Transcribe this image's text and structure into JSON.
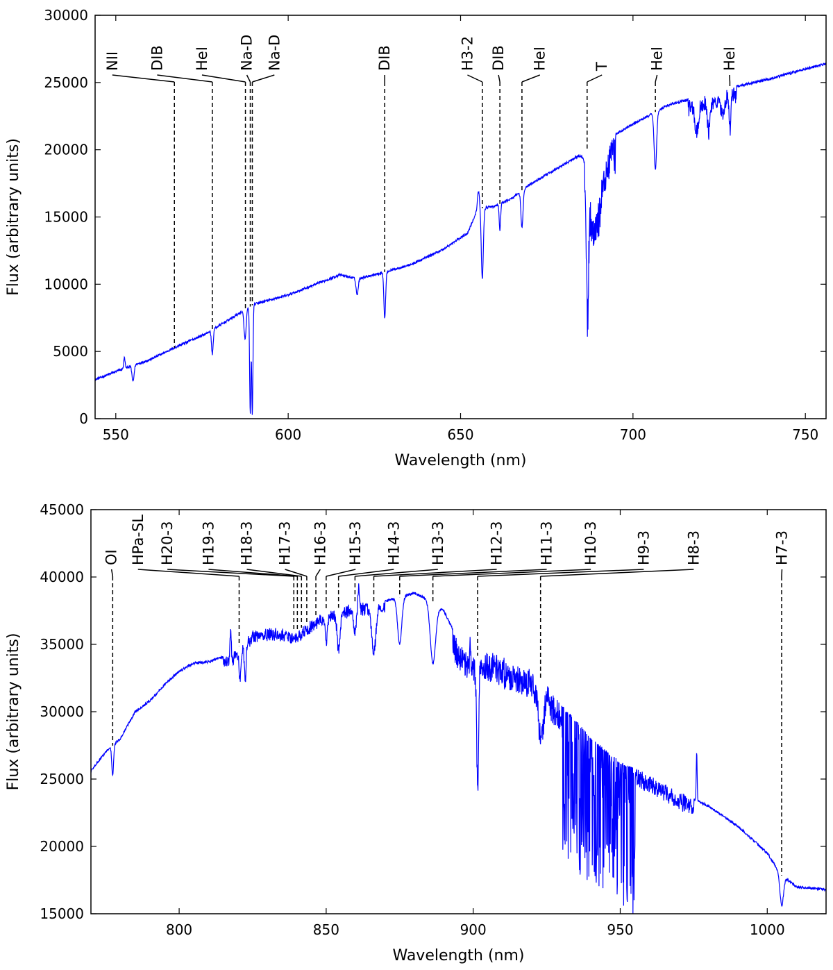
{
  "chart_data": [
    {
      "type": "line",
      "title": "",
      "xlabel": "Wavelength (nm)",
      "ylabel": "Flux (arbitrary units)",
      "xlim": [
        544,
        756
      ],
      "ylim": [
        0,
        30000
      ],
      "xticks": [
        550,
        600,
        650,
        700,
        750
      ],
      "yticks": [
        0,
        5000,
        10000,
        15000,
        20000,
        25000,
        30000
      ],
      "grid": false,
      "legend": "none",
      "color": "#0000ff",
      "continuum": [
        [
          544,
          2900
        ],
        [
          552,
          3700
        ],
        [
          560,
          4400
        ],
        [
          568,
          5400
        ],
        [
          576,
          6300
        ],
        [
          585,
          7700
        ],
        [
          590,
          8500
        ],
        [
          600,
          9200
        ],
        [
          610,
          10200
        ],
        [
          615,
          10700
        ],
        [
          620,
          10400
        ],
        [
          628,
          10900
        ],
        [
          636,
          11500
        ],
        [
          645,
          12600
        ],
        [
          652,
          13800
        ],
        [
          655,
          15600
        ],
        [
          660,
          15800
        ],
        [
          665,
          16400
        ],
        [
          670,
          17400
        ],
        [
          680,
          18900
        ],
        [
          688,
          20200
        ],
        [
          692,
          20700
        ],
        [
          700,
          21900
        ],
        [
          710,
          23300
        ],
        [
          720,
          24000
        ],
        [
          730,
          24700
        ],
        [
          740,
          25300
        ],
        [
          750,
          26000
        ],
        [
          756,
          26400
        ]
      ],
      "absorption_features": [
        {
          "x": 555,
          "depth": 1200,
          "width": 0.3
        },
        {
          "x": 578,
          "depth": 1800,
          "width": 0.25
        },
        {
          "x": 587.5,
          "depth": 2200,
          "width": 0.3
        },
        {
          "x": 589.0,
          "depth": 8000,
          "width": 0.18
        },
        {
          "x": 589.6,
          "depth": 8100,
          "width": 0.18
        },
        {
          "x": 620,
          "depth": 1200,
          "width": 0.3
        },
        {
          "x": 628,
          "depth": 3400,
          "width": 0.25
        },
        {
          "x": 656.3,
          "depth": 5200,
          "width": 0.3
        },
        {
          "x": 661.4,
          "depth": 2000,
          "width": 0.2
        },
        {
          "x": 667.8,
          "depth": 2800,
          "width": 0.3
        },
        {
          "x": 686.8,
          "depth": 9200,
          "width": 0.3
        },
        {
          "x": 689.0,
          "depth": 5000,
          "width": 1.6
        },
        {
          "x": 706.5,
          "depth": 4300,
          "width": 0.35
        },
        {
          "x": 718.5,
          "depth": 2000,
          "width": 0.5
        },
        {
          "x": 722,
          "depth": 2200,
          "width": 0.4
        },
        {
          "x": 726,
          "depth": 1200,
          "width": 0.5
        },
        {
          "x": 728.1,
          "depth": 2500,
          "width": 0.25
        }
      ],
      "emission_features": [
        {
          "x": 552.5,
          "height": 800,
          "width": 0.2
        },
        {
          "x": 655.2,
          "height": 1300,
          "width": 0.3
        }
      ],
      "annotations": [
        {
          "label": "NII",
          "x": 567.0,
          "label_x": 549
        },
        {
          "label": "DIB",
          "x": 578.0,
          "label_x": 562
        },
        {
          "label": "HeI",
          "x": 587.6,
          "label_x": 575
        },
        {
          "label": "Na-D",
          "x": 589.0,
          "label_x": 588
        },
        {
          "label": "Na-D",
          "x": 589.6,
          "label_x": 596
        },
        {
          "label": "DIB",
          "x": 628.0,
          "label_x": 628
        },
        {
          "label": "H3-2",
          "x": 656.3,
          "label_x": 652
        },
        {
          "label": "DIB",
          "x": 661.4,
          "label_x": 661
        },
        {
          "label": "HeI",
          "x": 667.8,
          "label_x": 673
        },
        {
          "label": "T",
          "x": 686.7,
          "label_x": 691
        },
        {
          "label": "HeI",
          "x": 706.5,
          "label_x": 707
        },
        {
          "label": "HeI",
          "x": 728.1,
          "label_x": 728
        }
      ]
    },
    {
      "type": "line",
      "title": "",
      "xlabel": "Wavelength (nm)",
      "ylabel": "Flux (arbitrary units)",
      "xlim": [
        770,
        1020
      ],
      "ylim": [
        15000,
        45000
      ],
      "xticks": [
        800,
        850,
        900,
        950,
        1000
      ],
      "yticks": [
        15000,
        20000,
        25000,
        30000,
        35000,
        40000,
        45000
      ],
      "grid": false,
      "legend": "none",
      "color": "#0000ff",
      "continuum": [
        [
          770,
          25600
        ],
        [
          775,
          27000
        ],
        [
          780,
          28000
        ],
        [
          785,
          30000
        ],
        [
          790,
          30800
        ],
        [
          795,
          32000
        ],
        [
          800,
          33000
        ],
        [
          805,
          33600
        ],
        [
          810,
          33700
        ],
        [
          818,
          34300
        ],
        [
          825,
          36000
        ],
        [
          830,
          36200
        ],
        [
          840,
          36000
        ],
        [
          850,
          37500
        ],
        [
          860,
          38000
        ],
        [
          870,
          38200
        ],
        [
          880,
          38800
        ],
        [
          885,
          38300
        ],
        [
          890,
          37500
        ],
        [
          895,
          35200
        ],
        [
          900,
          34000
        ],
        [
          905,
          34500
        ],
        [
          910,
          34000
        ],
        [
          920,
          33000
        ],
        [
          925,
          32000
        ],
        [
          930,
          30500
        ],
        [
          940,
          28000
        ],
        [
          950,
          26200
        ],
        [
          960,
          25300
        ],
        [
          970,
          24000
        ],
        [
          980,
          23000
        ],
        [
          990,
          21500
        ],
        [
          1000,
          19500
        ],
        [
          1005,
          17800
        ],
        [
          1010,
          17000
        ],
        [
          1020,
          16800
        ]
      ],
      "absorption_features": [
        {
          "x": 777.4,
          "depth": 2200,
          "width": 0.3
        },
        {
          "x": 820.7,
          "depth": 2000,
          "width": 0.3
        },
        {
          "x": 822.5,
          "depth": 2600,
          "width": 0.3
        },
        {
          "x": 850.0,
          "depth": 1800,
          "width": 0.4
        },
        {
          "x": 854.2,
          "depth": 2600,
          "width": 0.5
        },
        {
          "x": 859.8,
          "depth": 1800,
          "width": 0.4
        },
        {
          "x": 866.2,
          "depth": 3300,
          "width": 0.7
        },
        {
          "x": 875.0,
          "depth": 3500,
          "width": 0.7
        },
        {
          "x": 886.3,
          "depth": 4500,
          "width": 0.9
        },
        {
          "x": 901.5,
          "depth": 9000,
          "width": 0.3
        },
        {
          "x": 923.0,
          "depth": 3500,
          "width": 0.8
        },
        {
          "x": 1004.9,
          "depth": 2200,
          "width": 0.6
        }
      ],
      "emission_features": [
        {
          "x": 817.5,
          "height": 2400,
          "width": 0.2
        },
        {
          "x": 861.0,
          "height": 1800,
          "width": 0.2
        },
        {
          "x": 899.0,
          "height": 1800,
          "width": 0.2
        },
        {
          "x": 976.0,
          "height": 3600,
          "width": 0.15
        }
      ],
      "telluric_band": {
        "from": 930,
        "to": 955,
        "depth": 11000
      },
      "annotations": [
        {
          "label": "OI",
          "x": 777.4,
          "label_x": 777
        },
        {
          "label": "HPa-SL",
          "x": 820.4,
          "label_x": 786
        },
        {
          "label": "H20-3",
          "x": 839.0,
          "label_x": 796
        },
        {
          "label": "H19-3",
          "x": 840.2,
          "label_x": 810
        },
        {
          "label": "H18-3",
          "x": 841.6,
          "label_x": 823
        },
        {
          "label": "H17-3",
          "x": 843.4,
          "label_x": 836
        },
        {
          "label": "H16-3",
          "x": 846.5,
          "label_x": 848
        },
        {
          "label": "H15-3",
          "x": 850.0,
          "label_x": 860
        },
        {
          "label": "H14-3",
          "x": 854.2,
          "label_x": 873
        },
        {
          "label": "H13-3",
          "x": 859.8,
          "label_x": 888
        },
        {
          "label": "H12-3",
          "x": 866.2,
          "label_x": 908
        },
        {
          "label": "H11-3",
          "x": 875.0,
          "label_x": 925
        },
        {
          "label": "H10-3",
          "x": 886.3,
          "label_x": 940
        },
        {
          "label": "H9-3",
          "x": 901.5,
          "label_x": 958
        },
        {
          "label": "H8-3",
          "x": 922.9,
          "label_x": 975
        },
        {
          "label": "H7-3",
          "x": 1004.9,
          "label_x": 1005
        }
      ]
    }
  ]
}
